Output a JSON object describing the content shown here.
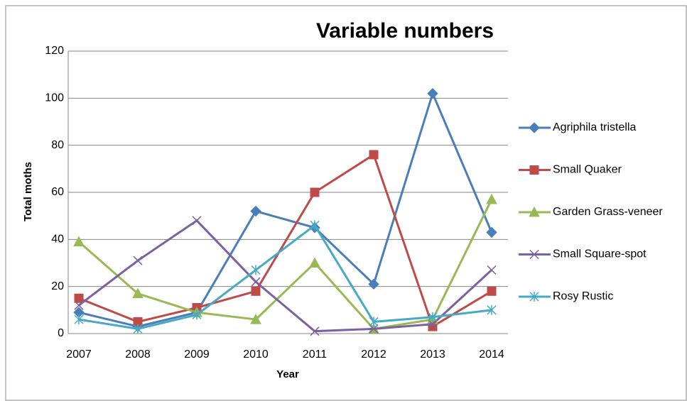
{
  "chart_data": {
    "type": "line",
    "title": "Variable numbers",
    "x_label": "Year",
    "y_label": "Total moths",
    "categories": [
      "2007",
      "2008",
      "2009",
      "2010",
      "2011",
      "2012",
      "2013",
      "2014"
    ],
    "ylim": [
      0,
      120
    ],
    "yticks": [
      0,
      20,
      40,
      60,
      80,
      100,
      120
    ],
    "grid": true,
    "legend": "right",
    "series": [
      {
        "name": "Agriphila tristella",
        "color": "#4a7ebb",
        "marker": "diamond",
        "values": [
          9,
          3,
          9,
          52,
          45,
          21,
          102,
          43
        ]
      },
      {
        "name": "Small Quaker",
        "color": "#be4b48",
        "marker": "square",
        "values": [
          15,
          5,
          11,
          18,
          60,
          76,
          3,
          18
        ]
      },
      {
        "name": "Garden Grass-veneer",
        "color": "#98b954",
        "marker": "triangle",
        "values": [
          39,
          17,
          9,
          6,
          30,
          2,
          6,
          57
        ]
      },
      {
        "name": "Small Square-spot",
        "color": "#7d60a0",
        "marker": "x",
        "values": [
          12,
          31,
          48,
          22,
          1,
          2,
          4,
          27
        ]
      },
      {
        "name": "Rosy Rustic",
        "color": "#46aac5",
        "marker": "star",
        "values": [
          6,
          2,
          8,
          27,
          46,
          5,
          7,
          10
        ]
      }
    ]
  }
}
